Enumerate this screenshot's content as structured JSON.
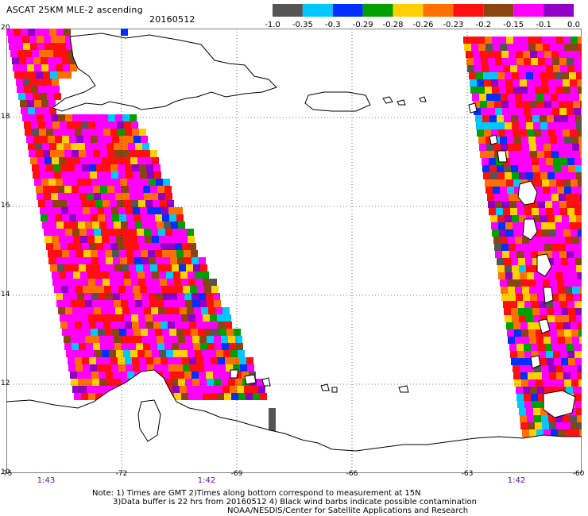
{
  "header": {
    "title": "ASCAT 25KM MLE-2 ascending",
    "date": "20160512"
  },
  "colorbar": {
    "colors": [
      "#555555",
      "#00c8ff",
      "#0030ff",
      "#00a000",
      "#ffd000",
      "#ff7000",
      "#ff1010",
      "#8b4513",
      "#ff00ff",
      "#9000c8"
    ],
    "labels": [
      "-1.0",
      "-0.35",
      "-0.3",
      "-0.29",
      "-0.28",
      "-0.26",
      "-0.23",
      "-0.2",
      "-0.15",
      "-0.1",
      "0.0"
    ]
  },
  "axes": {
    "lat_labels": [
      "20",
      "18",
      "16",
      "14",
      "12",
      "10"
    ],
    "lon_labels": [
      "-75",
      "-72",
      "-69",
      "-66",
      "-63",
      "-60"
    ]
  },
  "pass_times": [
    "1:43",
    "1:42",
    "1:42"
  ],
  "notes": {
    "line1": "Note: 1) Times are GMT 2)Times along bottom correspond to measurement at 15N",
    "line2": "3)Data buffer is 22 hrs from 20160512 4) Black wind barbs indicate possible contamination",
    "line3": "NOAA/NESDIS/Center for Satellite Applications and Research"
  }
}
